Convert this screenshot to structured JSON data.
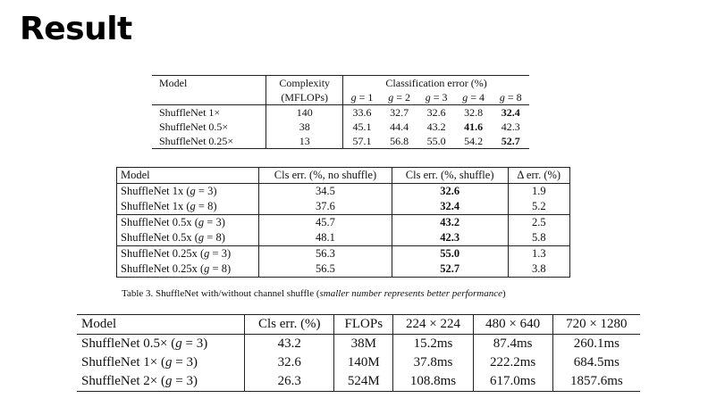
{
  "slide": {
    "title": "Result"
  },
  "table1": {
    "headers": {
      "model": "Model",
      "complexity": "Complexity",
      "complexity_unit": "(MFLOPs)",
      "cls_err": "Classification error (%)",
      "groups": [
        "1",
        "2",
        "3",
        "4",
        "8"
      ]
    },
    "rows": [
      {
        "model": "ShuffleNet 1×",
        "complexity": "140",
        "errors": [
          "33.6",
          "32.7",
          "32.6",
          "32.8",
          "32.4"
        ],
        "best_index": 4
      },
      {
        "model": "ShuffleNet 0.5×",
        "complexity": "38",
        "errors": [
          "45.1",
          "44.4",
          "43.2",
          "41.6",
          "42.3"
        ],
        "best_index": 3
      },
      {
        "model": "ShuffleNet 0.25×",
        "complexity": "13",
        "errors": [
          "57.1",
          "56.8",
          "55.0",
          "54.2",
          "52.7"
        ],
        "best_index": 4
      }
    ]
  },
  "table2": {
    "headers": {
      "model": "Model",
      "no_shuffle": "Cls err. (%, no shuffle)",
      "shuffle": "Cls err. (%, shuffle)",
      "delta": "Δ err. (%)"
    },
    "rows": [
      {
        "name": "ShuffleNet 1x",
        "g": "3",
        "no_shuffle": "34.5",
        "shuffle": "32.6",
        "delta": "1.9"
      },
      {
        "name": "ShuffleNet 1x",
        "g": "8",
        "no_shuffle": "37.6",
        "shuffle": "32.4",
        "delta": "5.2"
      },
      {
        "name": "ShuffleNet 0.5x",
        "g": "3",
        "no_shuffle": "45.7",
        "shuffle": "43.2",
        "delta": "2.5"
      },
      {
        "name": "ShuffleNet 0.5x",
        "g": "8",
        "no_shuffle": "48.1",
        "shuffle": "42.3",
        "delta": "5.8"
      },
      {
        "name": "ShuffleNet 0.25x",
        "g": "3",
        "no_shuffle": "56.3",
        "shuffle": "55.0",
        "delta": "1.3"
      },
      {
        "name": "ShuffleNet 0.25x",
        "g": "8",
        "no_shuffle": "56.5",
        "shuffle": "52.7",
        "delta": "3.8"
      }
    ],
    "caption": {
      "prefix": "Table 3. ShuffleNet with/without channel shuffle (",
      "italic": "smaller number represents better performance",
      "suffix": ")"
    }
  },
  "table3": {
    "headers": [
      "Model",
      "Cls err. (%)",
      "FLOPs",
      "224 × 224",
      "480 × 640",
      "720 × 1280"
    ],
    "rows": [
      {
        "name": "ShuffleNet 0.5×",
        "g": "3",
        "cls_err": "43.2",
        "flops": "38M",
        "t224": "15.2ms",
        "t480": "87.4ms",
        "t720": "260.1ms"
      },
      {
        "name": "ShuffleNet 1×",
        "g": "3",
        "cls_err": "32.6",
        "flops": "140M",
        "t224": "37.8ms",
        "t480": "222.2ms",
        "t720": "684.5ms"
      },
      {
        "name": "ShuffleNet 2×",
        "g": "3",
        "cls_err": "26.3",
        "flops": "524M",
        "t224": "108.8ms",
        "t480": "617.0ms",
        "t720": "1857.6ms"
      }
    ]
  }
}
